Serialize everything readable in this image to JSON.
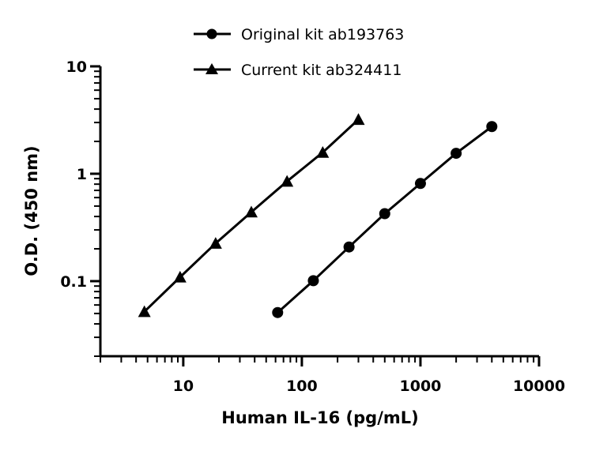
{
  "chart_data": {
    "type": "scatter",
    "title": "",
    "xlabel": "Human IL-16 (pg/mL)",
    "ylabel": "O.D. (450 nm)",
    "x_scale": "log",
    "y_scale": "log",
    "xlim": [
      2,
      10000
    ],
    "ylim": [
      0.02,
      10
    ],
    "x_ticks": [
      10,
      100,
      1000,
      10000
    ],
    "x_tick_labels": [
      "10",
      "100",
      "1000",
      "10000"
    ],
    "y_ticks": [
      0.1,
      1,
      10
    ],
    "y_tick_labels": [
      "0.1",
      "1",
      "10"
    ],
    "grid": false,
    "legend_position": "top",
    "series": [
      {
        "name": "Original kit ab193763",
        "marker": "circle",
        "color": "#000000",
        "x": [
          62.5,
          125,
          250,
          500,
          1000,
          2000,
          4000
        ],
        "y": [
          0.051,
          0.101,
          0.208,
          0.425,
          0.812,
          1.55,
          2.75
        ]
      },
      {
        "name": "Current kit ab324411",
        "marker": "triangle",
        "color": "#000000",
        "x": [
          4.7,
          9.4,
          18.75,
          37.5,
          75,
          150,
          300
        ],
        "y": [
          0.052,
          0.109,
          0.225,
          0.44,
          0.85,
          1.58,
          3.2
        ]
      }
    ]
  }
}
